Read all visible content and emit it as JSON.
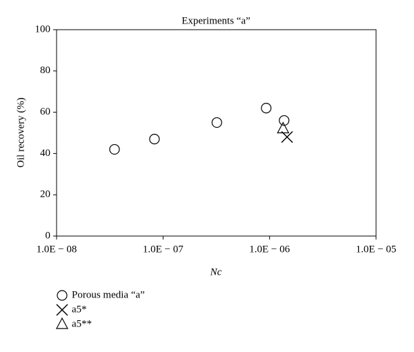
{
  "chart_data": {
    "type": "scatter",
    "title": "Experiments “a”",
    "x_label": "Nc",
    "y_label": "Oil recovery (%)",
    "xscale": "log",
    "xlim": [
      1e-08,
      1e-05
    ],
    "xticks": [
      {
        "value": 1e-08,
        "label": "1.0E − 08"
      },
      {
        "value": 1e-07,
        "label": "1.0E − 07"
      },
      {
        "value": 1e-06,
        "label": "1.0E − 06"
      },
      {
        "value": 1e-05,
        "label": "1.0E − 05"
      }
    ],
    "ylim": [
      0,
      100
    ],
    "yticks": [
      0,
      20,
      40,
      60,
      80,
      100
    ],
    "series": [
      {
        "name": "Porous media “a”",
        "color": "#000000",
        "marker": "circle",
        "x": [
          3.5e-08,
          8.3e-08,
          3.2e-07,
          9.3e-07,
          1.37e-06
        ],
        "values": [
          42,
          47,
          55,
          62,
          56
        ]
      },
      {
        "name": "a5*",
        "color": "#000000",
        "marker": "cross",
        "x": [
          1.46e-06
        ],
        "values": [
          48
        ]
      },
      {
        "name": "a5**",
        "color": "#000000",
        "marker": "triangle",
        "x": [
          1.34e-06
        ],
        "values": [
          52
        ]
      }
    ]
  }
}
